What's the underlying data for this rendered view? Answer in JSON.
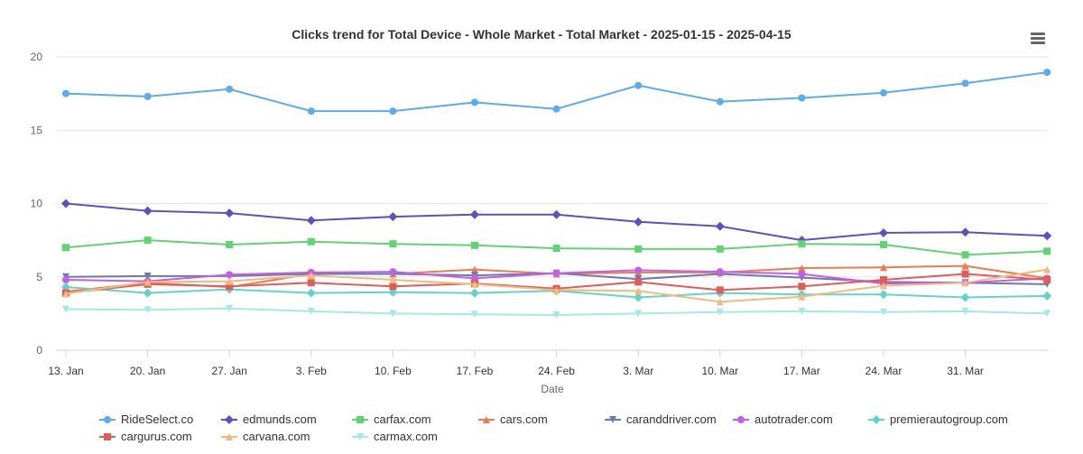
{
  "chart_data": {
    "type": "line",
    "title": "Clicks trend for Total Device - Whole Market - Total Market - 2025-01-15 - 2025-04-15",
    "xlabel": "Date",
    "ylabel": "",
    "ylim": [
      0,
      20
    ],
    "yticks": [
      0,
      5,
      10,
      15,
      20
    ],
    "grid": "horizontal",
    "legend_position": "bottom",
    "x": [
      "2025-01-13",
      "2025-01-20",
      "2025-01-27",
      "2025-02-03",
      "2025-02-10",
      "2025-02-17",
      "2025-02-24",
      "2025-03-03",
      "2025-03-10",
      "2025-03-17",
      "2025-03-24",
      "2025-03-31",
      "2025-04-07"
    ],
    "xticks": [
      {
        "label": "13. Jan",
        "date": "2025-01-13"
      },
      {
        "label": "20. Jan",
        "date": "2025-01-20"
      },
      {
        "label": "27. Jan",
        "date": "2025-01-27"
      },
      {
        "label": "3. Feb",
        "date": "2025-02-03"
      },
      {
        "label": "10. Feb",
        "date": "2025-02-10"
      },
      {
        "label": "17. Feb",
        "date": "2025-02-17"
      },
      {
        "label": "24. Feb",
        "date": "2025-02-24"
      },
      {
        "label": "3. Mar",
        "date": "2025-03-03"
      },
      {
        "label": "10. Mar",
        "date": "2025-03-10"
      },
      {
        "label": "17. Mar",
        "date": "2025-03-17"
      },
      {
        "label": "24. Mar",
        "date": "2025-03-24"
      },
      {
        "label": "31. Mar",
        "date": "2025-03-31"
      }
    ],
    "series": [
      {
        "name": "RideSelect.co",
        "color": "#5aabf0",
        "marker": "circle",
        "values": [
          17.5,
          17.3,
          17.8,
          16.3,
          16.3,
          16.9,
          16.45,
          18.05,
          16.95,
          17.2,
          17.55,
          18.2,
          18.95
        ]
      },
      {
        "name": "edmunds.com",
        "color": "#5c50c4",
        "marker": "diamond",
        "values": [
          10.0,
          9.5,
          9.35,
          8.85,
          9.1,
          9.25,
          9.25,
          8.75,
          8.45,
          7.5,
          8.0,
          8.05,
          7.8
        ]
      },
      {
        "name": "carfax.com",
        "color": "#5fd473",
        "marker": "square",
        "values": [
          7.0,
          7.5,
          7.2,
          7.4,
          7.25,
          7.15,
          6.95,
          6.9,
          6.9,
          7.25,
          7.2,
          6.5,
          6.75
        ]
      },
      {
        "name": "cars.com",
        "color": "#ee7a4d",
        "marker": "triangle",
        "values": [
          4.0,
          4.6,
          4.3,
          5.2,
          5.2,
          5.5,
          5.2,
          5.3,
          5.3,
          5.6,
          5.65,
          5.75,
          4.9
        ]
      },
      {
        "name": "caranddriver.com",
        "color": "#6b7ba8",
        "marker": "triangle-down",
        "values": [
          5.0,
          5.05,
          5.05,
          5.2,
          5.2,
          5.1,
          5.25,
          4.85,
          5.2,
          4.95,
          4.65,
          4.6,
          4.5
        ]
      },
      {
        "name": "autotrader.com",
        "color": "#c05ef0",
        "marker": "circle",
        "values": [
          4.8,
          4.7,
          5.15,
          5.3,
          5.35,
          4.9,
          5.25,
          5.45,
          5.35,
          5.2,
          4.55,
          4.6,
          4.9
        ]
      },
      {
        "name": "premierautogroup.com",
        "color": "#62d3cb",
        "marker": "diamond",
        "values": [
          4.3,
          3.9,
          4.15,
          3.9,
          3.95,
          3.9,
          4.05,
          3.6,
          3.9,
          3.8,
          3.8,
          3.6,
          3.7
        ]
      },
      {
        "name": "cargurus.com",
        "color": "#e25c55",
        "marker": "square",
        "values": [
          3.9,
          4.5,
          4.35,
          4.6,
          4.35,
          4.55,
          4.2,
          4.65,
          4.1,
          4.35,
          4.8,
          5.2,
          4.8
        ]
      },
      {
        "name": "carvana.com",
        "color": "#f2ba7a",
        "marker": "triangle",
        "values": [
          3.85,
          4.65,
          4.7,
          5.1,
          4.8,
          4.5,
          4.1,
          4.05,
          3.3,
          3.65,
          4.4,
          4.6,
          5.5
        ]
      },
      {
        "name": "carmax.com",
        "color": "#a2eae4",
        "marker": "triangle-down",
        "values": [
          2.8,
          2.75,
          2.85,
          2.65,
          2.5,
          2.45,
          2.4,
          2.5,
          2.6,
          2.65,
          2.6,
          2.65,
          2.5
        ]
      }
    ]
  }
}
